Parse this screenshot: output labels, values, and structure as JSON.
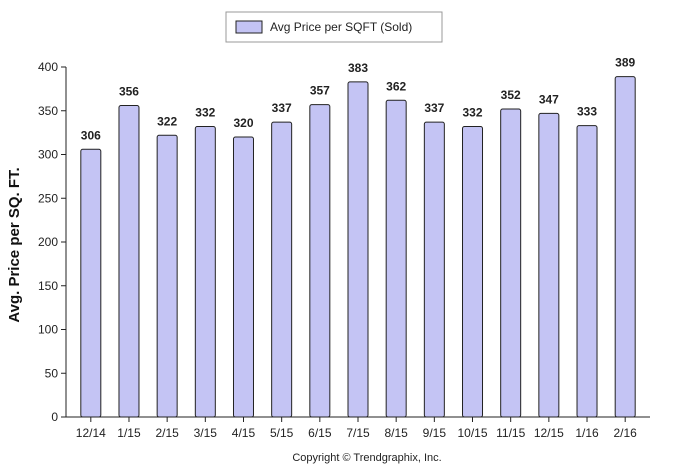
{
  "chart_data": {
    "type": "bar",
    "categories": [
      "12/14",
      "1/15",
      "2/15",
      "3/15",
      "4/15",
      "5/15",
      "6/15",
      "7/15",
      "8/15",
      "9/15",
      "10/15",
      "11/15",
      "12/15",
      "1/16",
      "2/16"
    ],
    "series": [
      {
        "name": "Avg Price per SQFT (Sold)",
        "values": [
          306,
          356,
          322,
          332,
          320,
          337,
          357,
          383,
          362,
          337,
          332,
          352,
          347,
          333,
          389
        ]
      }
    ],
    "ylabel": "Avg. Price per SQ. FT.",
    "xlabel": "",
    "ylim": [
      0,
      400
    ],
    "yticks": [
      0,
      50,
      100,
      150,
      200,
      250,
      300,
      350,
      400
    ],
    "legend_position": "top-center",
    "bar_color": "#c4c4f4",
    "bar_edge_color": "#222222",
    "copyright": "Copyright © Trendgraphix, Inc."
  }
}
